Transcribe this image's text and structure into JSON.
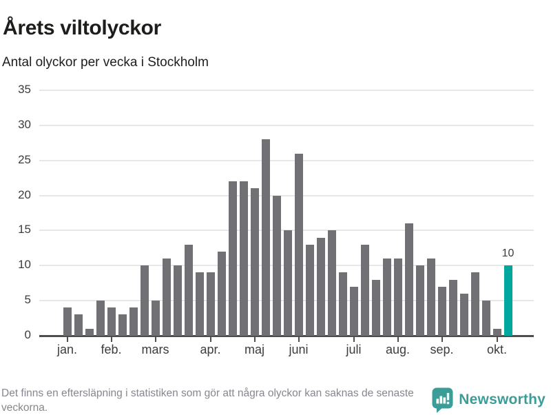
{
  "header": {
    "title": "Årets viltolyckor",
    "subtitle": "Antal olyckor per vecka i Stockholm"
  },
  "footer": {
    "note": "Det finns en eftersläpning i statistiken som gör att några olyckor kan saknas de senaste veckorna.",
    "brand": "Newsworthy"
  },
  "colors": {
    "bar": "#717074",
    "highlight": "#00a79c",
    "brand_teal": "#3b9d98",
    "grid": "#e7e7e7",
    "axis": "#4d4d4d",
    "title_text": "#1d1d1b",
    "tick_label": "#3c3c3c",
    "footer_text": "#86868e",
    "background": "#ffffff"
  },
  "chart_data": {
    "type": "bar",
    "title": "Årets viltolyckor",
    "subtitle": "Antal olyckor per vecka i Stockholm",
    "xlabel": "",
    "ylabel": "",
    "x_description": "veckor, januari till oktober (41 veckor)",
    "values": [
      4,
      3,
      1,
      5,
      4,
      3,
      4,
      10,
      5,
      11,
      10,
      13,
      9,
      9,
      12,
      22,
      22,
      21,
      28,
      20,
      15,
      26,
      13,
      14,
      15,
      9,
      7,
      13,
      8,
      11,
      11,
      16,
      10,
      11,
      7,
      8,
      6,
      9,
      5,
      1,
      10
    ],
    "highlight_index": 40,
    "highlight_value_label": "10",
    "y_ticks": [
      0,
      5,
      10,
      15,
      20,
      25,
      30,
      35
    ],
    "ylim": [
      0,
      35
    ],
    "grid": true,
    "legend_position": "none",
    "month_ticks": [
      {
        "label": "jan.",
        "week_index": 0
      },
      {
        "label": "feb.",
        "week_index": 4
      },
      {
        "label": "mars",
        "week_index": 8
      },
      {
        "label": "apr.",
        "week_index": 13
      },
      {
        "label": "maj",
        "week_index": 17
      },
      {
        "label": "juni",
        "week_index": 21
      },
      {
        "label": "juli",
        "week_index": 26
      },
      {
        "label": "aug.",
        "week_index": 30
      },
      {
        "label": "sep.",
        "week_index": 34
      },
      {
        "label": "okt.",
        "week_index": 39
      }
    ]
  }
}
